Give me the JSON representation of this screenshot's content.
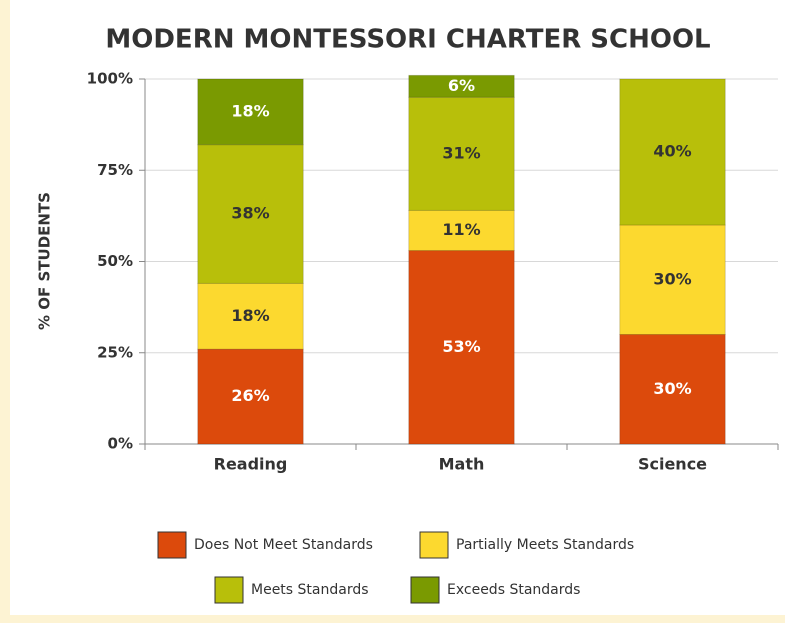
{
  "chart_data": {
    "type": "stacked_bar",
    "title": "MODERN MONTESSORI CHARTER SCHOOL",
    "y_label": "% OF STUDENTS",
    "categories": [
      "Reading",
      "Math",
      "Science"
    ],
    "series": [
      {
        "name": "Does Not Meet Standards",
        "color": "#dc4a0c",
        "values": [
          26,
          53,
          30
        ],
        "value_labels": [
          "26%",
          "53%",
          "30%"
        ]
      },
      {
        "name": "Partially Meets Standards",
        "color": "#fcd92f",
        "values": [
          18,
          11,
          30
        ],
        "value_labels": [
          "18%",
          "11%",
          "30%"
        ]
      },
      {
        "name": "Meets Standards",
        "color": "#b8bf0a",
        "values": [
          38,
          31,
          40
        ],
        "value_labels": [
          "38%",
          "31%",
          "40%"
        ]
      },
      {
        "name": "Exceeds Standards",
        "color": "#7a9a01",
        "values": [
          18,
          6,
          null
        ],
        "value_labels": [
          "18%",
          "6%",
          null
        ]
      }
    ],
    "ylim": [
      0,
      100
    ],
    "yticks": [
      {
        "value": 0,
        "label": "0%"
      },
      {
        "value": 25,
        "label": "25%"
      },
      {
        "value": 50,
        "label": "50%"
      },
      {
        "value": 75,
        "label": "75%"
      },
      {
        "value": 100,
        "label": "100%"
      }
    ],
    "grid": true
  }
}
